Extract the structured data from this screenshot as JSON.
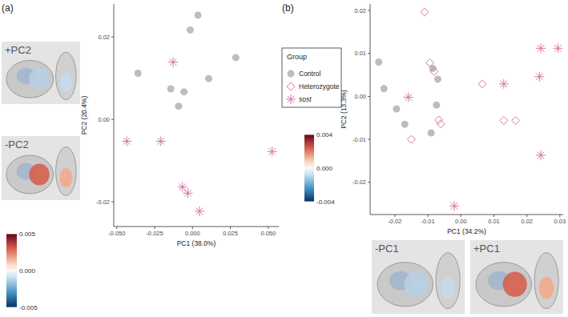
{
  "chart_data": [
    {
      "type": "scatter",
      "title": "(a)",
      "xlabel": "PC1 (38.0%)",
      "ylabel": "PC2 (20.4%)",
      "xlim": [
        -0.052,
        0.057
      ],
      "ylim": [
        -0.026,
        0.028
      ],
      "xticks": [
        {
          "value": -0.05,
          "label": "-0.050"
        },
        {
          "value": -0.025,
          "label": "-0.025"
        },
        {
          "value": 0,
          "label": "0.000"
        },
        {
          "value": 0.025,
          "label": "0.025"
        },
        {
          "value": 0.05,
          "label": "0.050"
        }
      ],
      "yticks": [
        {
          "value": -0.02,
          "label": "-0.02"
        },
        {
          "value": 0,
          "label": "0.00"
        },
        {
          "value": 0.02,
          "label": "0.02"
        }
      ],
      "series": [
        {
          "name": "Control",
          "color": "#bdbdbd",
          "marker": "circle",
          "x": [
            0.0036,
            -0.0015,
            -0.036,
            -0.0143,
            -0.0056,
            -0.0092,
            0.0107,
            0.0286
          ],
          "values": [
            0.0253,
            0.0217,
            0.0112,
            0.0074,
            0.0067,
            0.0032,
            0.0099,
            0.015
          ]
        },
        {
          "name": "sost",
          "color": "#d873a8",
          "marker": "asterisk",
          "x": [
            -0.0128,
            -0.0434,
            -0.0209,
            -0.0066,
            -0.0031,
            0.0046,
            0.0526
          ],
          "values": [
            0.0139,
            -0.0053,
            -0.0053,
            -0.0164,
            -0.0179,
            -0.0223,
            -0.0078
          ]
        }
      ],
      "annotations": [
        "+PC2",
        "-PC2"
      ],
      "colorbar": {
        "lim": [
          -0.005,
          0.005
        ],
        "ticks": [
          {
            "value": 0.005,
            "label": "0.005"
          },
          {
            "value": 0,
            "label": "0.000"
          },
          {
            "value": -0.005,
            "label": "-0.005"
          }
        ]
      }
    },
    {
      "type": "scatter",
      "title": "(b)",
      "xlabel": "PC1 (34.2%)",
      "ylabel": "PC2 (13.3%)",
      "xlim": [
        -0.0275,
        0.031
      ],
      "ylim": [
        -0.0275,
        0.0215
      ],
      "xticks": [
        {
          "value": -0.02,
          "label": "-0.02"
        },
        {
          "value": -0.01,
          "label": "-0.01"
        },
        {
          "value": 0,
          "label": "0.00"
        },
        {
          "value": 0.01,
          "label": "0.01"
        },
        {
          "value": 0.02,
          "label": "0.02"
        },
        {
          "value": 0.03,
          "label": "0.03"
        }
      ],
      "yticks": [
        {
          "value": -0.02,
          "label": "-0.02"
        },
        {
          "value": -0.01,
          "label": "-0.01"
        },
        {
          "value": 0,
          "label": "0.00"
        },
        {
          "value": 0.01,
          "label": "0.01"
        },
        {
          "value": 0.02,
          "label": "0.02"
        }
      ],
      "legend": "left",
      "legend_title": "Group",
      "series": [
        {
          "name": "Control",
          "color": "#bdbdbd",
          "marker": "circle",
          "x": [
            -0.0249,
            -0.0233,
            -0.0195,
            -0.017,
            -0.0085,
            -0.007,
            -0.0074,
            -0.009
          ],
          "values": [
            0.008,
            0.0018,
            -0.0029,
            -0.0065,
            0.0065,
            0.004,
            -0.002,
            -0.0085
          ]
        },
        {
          "name": "Heterozygote",
          "color": "#d873a8",
          "marker": "diamond",
          "x": [
            -0.011,
            -0.0094,
            -0.0081,
            -0.0067,
            -0.0061,
            -0.015,
            0.0065,
            0.013,
            0.0166
          ],
          "values": [
            0.0196,
            0.0078,
            0.0058,
            -0.0055,
            -0.0064,
            -0.01,
            0.0029,
            -0.0056,
            -0.0056
          ]
        },
        {
          "name": "sost",
          "color": "#d873a8",
          "marker": "asterisk",
          "x": [
            -0.0159,
            0.013,
            0.0242,
            0.0294,
            0.0238,
            0.0242,
            -0.002
          ],
          "values": [
            -0.0002,
            0.0029,
            0.0112,
            0.0112,
            0.0046,
            -0.0137,
            -0.0255
          ]
        }
      ],
      "annotations": [
        "-PC1",
        "+PC1"
      ],
      "colorbar": {
        "lim": [
          -0.004,
          0.004
        ],
        "ticks": [
          {
            "value": 0.004,
            "label": "0.004"
          },
          {
            "value": 0,
            "label": "0.000"
          },
          {
            "value": -0.004,
            "label": "-0.004"
          }
        ]
      }
    }
  ]
}
